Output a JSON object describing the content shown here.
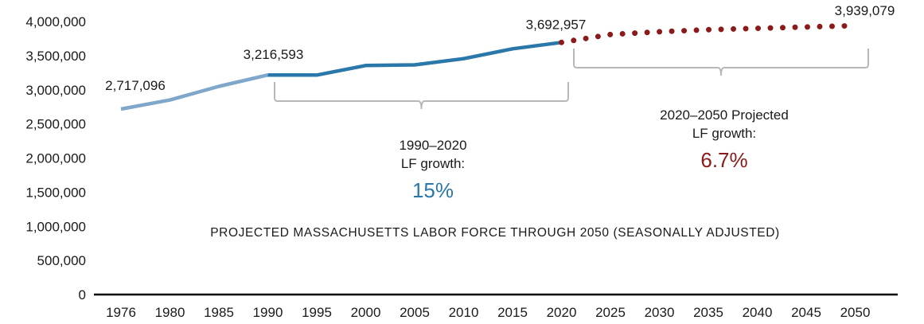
{
  "chart_data": {
    "type": "line",
    "title": "PROJECTED MASSACHUSETTS LABOR FORCE THROUGH 2050 (SEASONALLY ADJUSTED)",
    "xlabel": "",
    "ylabel": "",
    "categories": [
      "1976",
      "1980",
      "1985",
      "1990",
      "1995",
      "2000",
      "2005",
      "2010",
      "2015",
      "2020",
      "2025",
      "2030",
      "2035",
      "2040",
      "2045",
      "2050"
    ],
    "ylim": [
      0,
      4000000
    ],
    "yticks": [
      "0",
      "500,000",
      "1,000,000",
      "1,500,000",
      "2,000,000",
      "2,500,000",
      "3,000,000",
      "3,500,000",
      "4,000,000"
    ],
    "grid": false,
    "series": [
      {
        "style": "solid-light",
        "color": "#7fa7cc",
        "x": [
          "1976",
          "1980",
          "1985",
          "1990"
        ],
        "values": [
          2717096,
          2850000,
          3050000,
          3216593
        ]
      },
      {
        "style": "solid-dark",
        "color": "#2a77aa",
        "x": [
          "1990",
          "1995",
          "2000",
          "2005",
          "2010",
          "2015",
          "2020"
        ],
        "values": [
          3216593,
          3215000,
          3355000,
          3365000,
          3455000,
          3600000,
          3692957
        ]
      },
      {
        "style": "dotted",
        "color": "#8b1a1a",
        "x": [
          "2020",
          "2025",
          "2030",
          "2035",
          "2040",
          "2045",
          "2050"
        ],
        "values": [
          3692957,
          3810000,
          3850000,
          3880000,
          3900000,
          3920000,
          3939079
        ]
      }
    ],
    "data_labels": [
      {
        "x": "1976",
        "value": 2717096,
        "text": "2,717,096"
      },
      {
        "x": "1990",
        "value": 3216593,
        "text": "3,216,593"
      },
      {
        "x": "2020",
        "value": 3692957,
        "text": "3,692,957"
      },
      {
        "x": "2050",
        "value": 3939079,
        "text": "3,939,079"
      }
    ],
    "annotations": [
      {
        "range": [
          "1990",
          "2020"
        ],
        "lines": [
          "1990–2020",
          "LF growth:"
        ],
        "value": "15%",
        "value_color": "#2a77aa"
      },
      {
        "range": [
          "2020",
          "2050"
        ],
        "lines": [
          "2020–2050 Projected",
          "LF growth:"
        ],
        "value": "6.7%",
        "value_color": "#8b1a1a"
      }
    ]
  }
}
